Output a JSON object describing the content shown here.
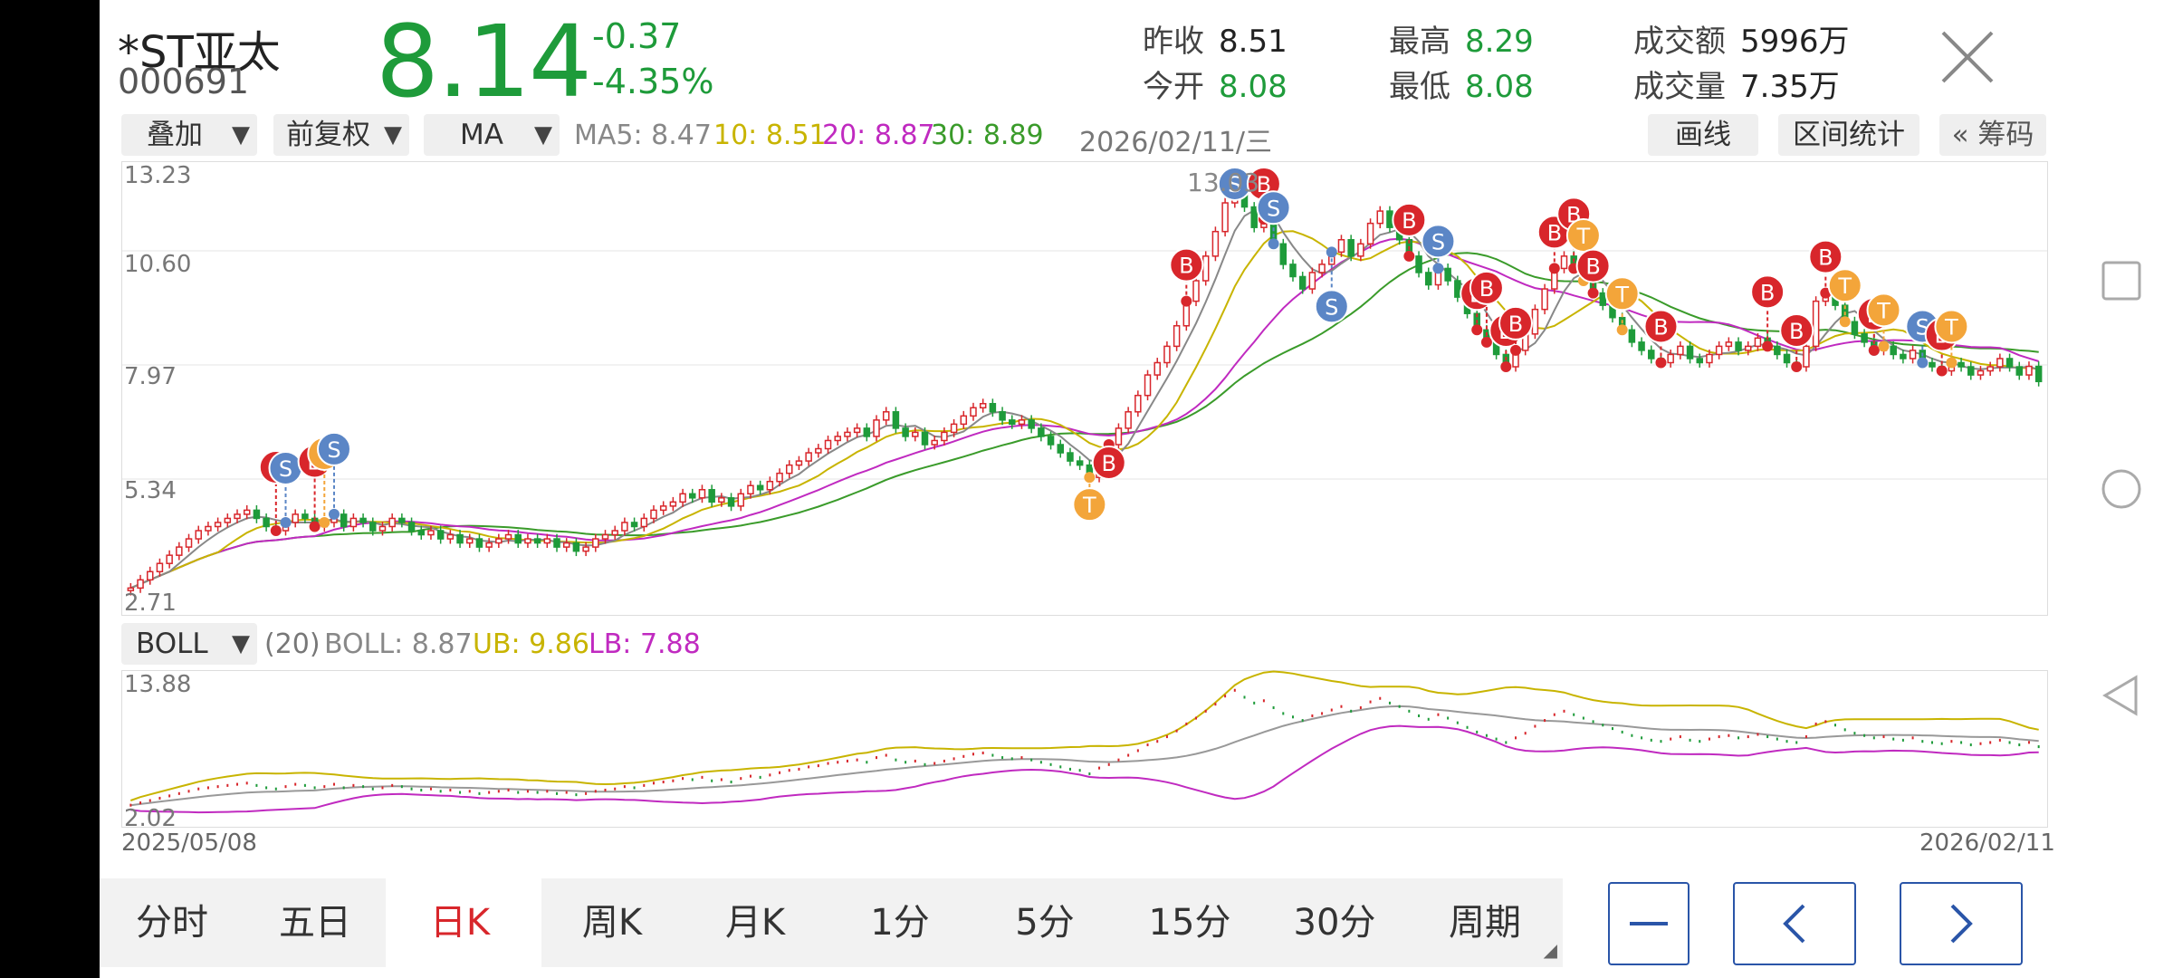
{
  "header": {
    "stock_name": "*ST亚太",
    "stock_code": "000691",
    "price": "8.14",
    "change": "-0.37",
    "change_pct": "-4.35%",
    "stats": [
      {
        "key": "昨收",
        "value": "8.51",
        "color": "dark"
      },
      {
        "key": "今开",
        "value": "8.08",
        "color": "green"
      },
      {
        "key": "最高",
        "value": "8.29",
        "color": "green"
      },
      {
        "key": "最低",
        "value": "8.08",
        "color": "green"
      },
      {
        "key": "成交额",
        "value": "5996万",
        "color": "dark"
      },
      {
        "key": "成交量",
        "value": "7.35万",
        "color": "dark"
      }
    ]
  },
  "toolbar": {
    "overlay_label": "叠加",
    "adjust_label": "前复权",
    "indicator_label": "MA",
    "ma5": "MA5: 8.47",
    "ma10": "10: 8.51",
    "ma20": "20: 8.87",
    "ma30": "30: 8.89",
    "date": "2026/02/11/三",
    "draw_line": "画线",
    "range_stats": "区间统计",
    "chips": "« 筹码"
  },
  "main_chart": {
    "y_labels": [
      "13.23",
      "10.60",
      "7.97",
      "5.34",
      "2.71"
    ],
    "peak_label": "13.03"
  },
  "sub_chart": {
    "indicator": "BOLL",
    "params": "(20)",
    "boll": "BOLL: 8.87",
    "ub": "UB: 9.86",
    "lb": "LB: 7.88",
    "y_top": "13.88",
    "y_bottom": "2.02",
    "date_start": "2025/05/08",
    "date_end": "2026/02/11"
  },
  "tabs": [
    "分时",
    "五日",
    "日K",
    "周K",
    "月K",
    "1分",
    "5分",
    "15分",
    "30分",
    "周期"
  ],
  "active_tab": "日K",
  "colors": {
    "up": "#d8262b",
    "down": "#1e9b3a",
    "ma5": "#888888",
    "ma10": "#c8b400",
    "ma20": "#c02ac0",
    "ma30": "#3a9b2a",
    "accent_blue": "#2a55a8",
    "marker_b": "#d8262b",
    "marker_s": "#5b86c6",
    "marker_t": "#f3a53a"
  },
  "chart_data": {
    "type": "candlestick",
    "x_start": "2025/05/08",
    "x_end": "2026/02/11",
    "main_y_range": [
      2.71,
      13.23
    ],
    "sub_y_range": [
      2.02,
      13.88
    ],
    "close_series": [
      3.1,
      3.3,
      3.5,
      3.7,
      3.9,
      4.1,
      4.3,
      4.5,
      4.6,
      4.7,
      4.8,
      4.9,
      5.0,
      4.8,
      4.6,
      4.5,
      4.7,
      4.9,
      4.8,
      4.6,
      4.7,
      4.9,
      4.6,
      4.8,
      4.7,
      4.5,
      4.6,
      4.8,
      4.7,
      4.5,
      4.4,
      4.5,
      4.3,
      4.4,
      4.2,
      4.3,
      4.1,
      4.2,
      4.3,
      4.4,
      4.2,
      4.3,
      4.2,
      4.3,
      4.1,
      4.2,
      4.0,
      4.1,
      4.3,
      4.4,
      4.5,
      4.7,
      4.6,
      4.8,
      5.0,
      5.1,
      5.2,
      5.4,
      5.3,
      5.5,
      5.2,
      5.3,
      5.1,
      5.4,
      5.6,
      5.5,
      5.7,
      5.9,
      6.1,
      6.2,
      6.4,
      6.5,
      6.7,
      6.8,
      6.9,
      7.0,
      6.8,
      7.2,
      7.4,
      7.0,
      6.8,
      6.9,
      6.6,
      6.7,
      6.9,
      7.1,
      7.3,
      7.5,
      7.6,
      7.4,
      7.2,
      7.1,
      7.2,
      7.0,
      6.8,
      6.6,
      6.4,
      6.2,
      6.1,
      5.8,
      6.3,
      6.6,
      7.0,
      7.4,
      7.8,
      8.3,
      8.6,
      9.0,
      9.5,
      10.1,
      10.6,
      11.2,
      11.8,
      12.5,
      13.0,
      12.4,
      11.9,
      12.1,
      11.5,
      11.0,
      10.7,
      10.4,
      10.8,
      11.0,
      11.3,
      11.6,
      11.2,
      11.5,
      12.0,
      12.3,
      11.9,
      11.6,
      11.2,
      10.8,
      10.5,
      10.9,
      10.6,
      10.2,
      9.8,
      9.4,
      9.1,
      8.8,
      8.5,
      8.9,
      9.3,
      9.9,
      10.4,
      10.9,
      11.2,
      10.9,
      10.6,
      10.3,
      10.0,
      9.7,
      9.4,
      9.1,
      8.9,
      8.7,
      8.6,
      8.8,
      9.0,
      8.7,
      8.6,
      8.8,
      9.0,
      9.1,
      8.9,
      9.0,
      9.2,
      9.0,
      8.8,
      8.6,
      8.5,
      9.0,
      10.1,
      10.3,
      10.0,
      9.6,
      9.3,
      9.1,
      8.9,
      9.0,
      8.8,
      8.7,
      8.9,
      8.6,
      8.5,
      8.4,
      8.6,
      8.5,
      8.3,
      8.4,
      8.5,
      8.7,
      8.5,
      8.3,
      8.51,
      8.14
    ]
  }
}
